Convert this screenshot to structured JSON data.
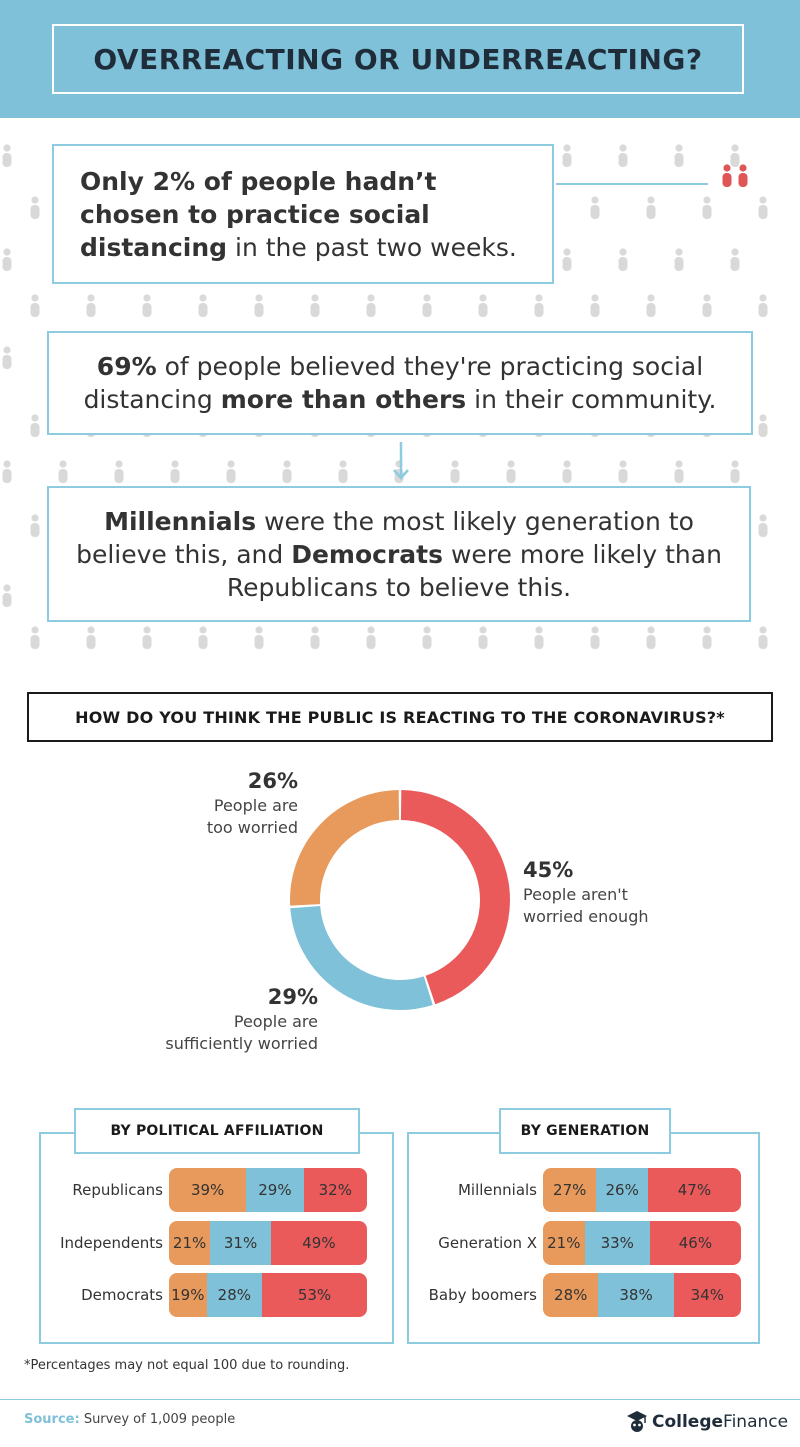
{
  "header": {
    "title": "OVERREACTING OR UNDERREACTING?"
  },
  "stats": {
    "stat1": {
      "bold1": "Only 2% of people hadn’t chosen to practice social distancing",
      "rest": " in the past two weeks."
    },
    "stat2": {
      "bold1": "69%",
      "mid": " of people believed they're practicing social distancing ",
      "bold2": "more than others",
      "rest": " in their community."
    },
    "stat3": {
      "bold1": "Millennials",
      "mid": " were the most likely generation to believe this, and ",
      "bold2": "Democrats",
      "rest": " were more likely than Republicans to believe this."
    }
  },
  "question": "HOW DO YOU THINK THE PUBLIC IS REACTING TO THE CORONAVIRUS?*",
  "colors": {
    "too_worried": "#e89a5c",
    "sufficient": "#7fc1d9",
    "not_enough": "#eb5a5a",
    "accent": "#8ccbe0",
    "person_grey": "#d9d9d9",
    "person_red": "#e05555"
  },
  "chart_data": [
    {
      "type": "pie",
      "title": "HOW DO YOU THINK THE PUBLIC IS REACTING TO THE CORONAVIRUS?*",
      "categories": [
        "People aren't worried enough",
        "People are sufficiently worried",
        "People are too worried"
      ],
      "values": [
        45,
        29,
        26
      ],
      "labels": [
        {
          "pct": "45%",
          "line1": "People aren't",
          "line2": "worried enough"
        },
        {
          "pct": "29%",
          "line1": "People are",
          "line2": "sufficiently worried"
        },
        {
          "pct": "26%",
          "line1": "People are",
          "line2": "too worried"
        }
      ]
    },
    {
      "type": "bar",
      "title": "BY POLITICAL AFFILIATION",
      "stacked": true,
      "categories": [
        "Republicans",
        "Independents",
        "Democrats"
      ],
      "series": [
        {
          "values": [
            39,
            21,
            19
          ],
          "labels": [
            "39%",
            "21%",
            "19%"
          ]
        },
        {
          "values": [
            29,
            31,
            28
          ],
          "labels": [
            "29%",
            "31%",
            "28%"
          ]
        },
        {
          "values": [
            32,
            49,
            53
          ],
          "labels": [
            "32%",
            "49%",
            "53%"
          ]
        }
      ]
    },
    {
      "type": "bar",
      "title": "BY GENERATION",
      "stacked": true,
      "categories": [
        "Millennials",
        "Generation X",
        "Baby boomers"
      ],
      "series": [
        {
          "values": [
            27,
            21,
            28
          ],
          "labels": [
            "27%",
            "21%",
            "28%"
          ]
        },
        {
          "values": [
            26,
            33,
            38
          ],
          "labels": [
            "26%",
            "33%",
            "38%"
          ]
        },
        {
          "values": [
            47,
            46,
            34
          ],
          "labels": [
            "47%",
            "46%",
            "34%"
          ]
        }
      ]
    }
  ],
  "footnote": "*Percentages may not equal 100 due to rounding.",
  "source": {
    "label": "Source:",
    "text": " Survey of 1,009 people"
  },
  "brand": {
    "bold": "College",
    "light": "Finance",
    "icon": "graduation-cap-icon"
  }
}
